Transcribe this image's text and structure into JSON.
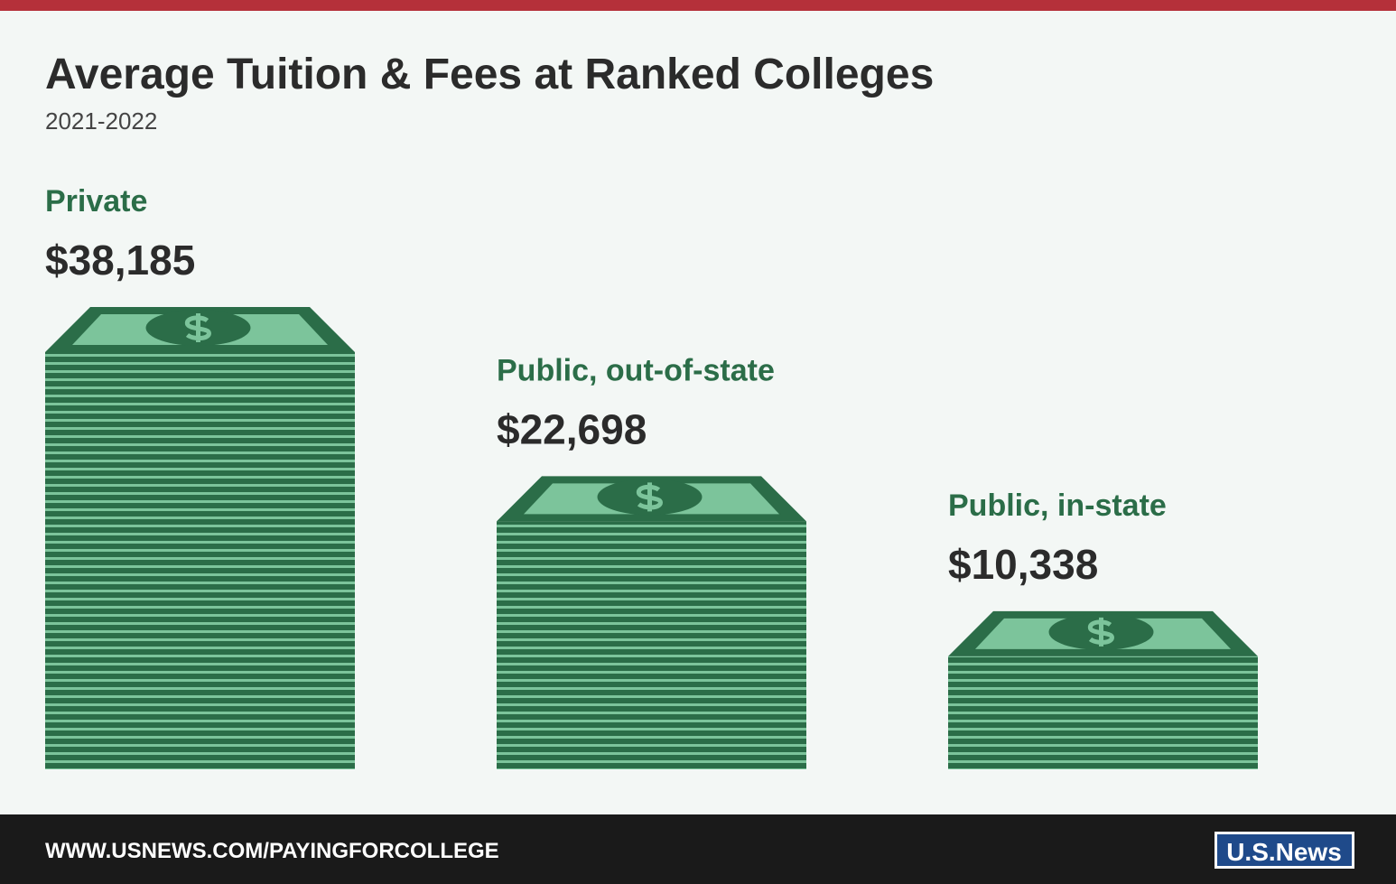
{
  "chart_data": {
    "type": "bar",
    "title": "Average Tuition & Fees at Ranked Colleges",
    "subtitle": "2021-2022",
    "categories": [
      "Private",
      "Public, out-of-state",
      "Public, in-state"
    ],
    "values": [
      38185,
      22698,
      10338
    ],
    "value_labels": [
      "$38,185",
      "$22,698",
      "$10,338"
    ],
    "color": "#2b6d48"
  },
  "footer": {
    "url": "WWW.USNEWS.COM/PAYINGFORCOLLEGE",
    "logo": "U.S.News"
  }
}
